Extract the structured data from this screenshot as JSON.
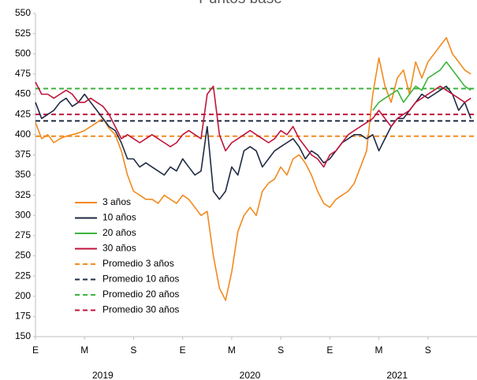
{
  "chart_data": {
    "type": "line",
    "title": "Puntos base",
    "categories": [
      "E",
      null,
      null,
      null,
      null,
      null,
      null,
      null,
      "M",
      null,
      null,
      null,
      null,
      null,
      null,
      null,
      "S",
      null,
      null,
      null,
      null,
      null,
      null,
      null,
      "E",
      null,
      null,
      null,
      null,
      null,
      null,
      null,
      "M",
      null,
      null,
      null,
      null,
      null,
      null,
      null,
      "S",
      null,
      null,
      null,
      null,
      null,
      null,
      null,
      "E",
      null,
      null,
      null,
      null,
      null,
      null,
      null,
      "M",
      null,
      null,
      null,
      null,
      null,
      null,
      null,
      "S",
      null,
      null,
      null,
      null,
      null,
      null,
      null
    ],
    "year_labels": [
      "2019",
      "2020",
      "2021"
    ],
    "series": [
      {
        "name": "3 años",
        "color": "#f28a1e",
        "values": [
          415,
          395,
          400,
          390,
          395,
          398,
          400,
          402,
          405,
          410,
          415,
          420,
          408,
          400,
          380,
          350,
          330,
          325,
          320,
          320,
          315,
          325,
          320,
          315,
          325,
          320,
          310,
          300,
          305,
          250,
          210,
          195,
          230,
          280,
          300,
          310,
          300,
          330,
          340,
          345,
          360,
          350,
          370,
          375,
          365,
          350,
          330,
          315,
          310,
          320,
          325,
          330,
          340,
          360,
          380,
          450,
          495,
          460,
          440,
          470,
          480,
          450,
          490,
          470,
          490,
          500,
          510,
          520,
          500,
          490,
          480,
          475
        ]
      },
      {
        "name": "10 años",
        "color": "#1f2a44",
        "values": [
          440,
          420,
          425,
          430,
          440,
          445,
          435,
          440,
          450,
          440,
          430,
          420,
          410,
          405,
          390,
          370,
          370,
          360,
          365,
          360,
          355,
          350,
          360,
          355,
          370,
          360,
          350,
          355,
          410,
          330,
          320,
          330,
          360,
          350,
          380,
          385,
          380,
          360,
          370,
          380,
          385,
          390,
          395,
          385,
          370,
          380,
          375,
          365,
          370,
          380,
          390,
          395,
          400,
          400,
          395,
          400,
          380,
          395,
          410,
          420,
          420,
          430,
          440,
          450,
          445,
          450,
          455,
          460,
          450,
          430,
          440,
          420
        ]
      },
      {
        "name": "20 años",
        "color": "#3cb43c",
        "values": [
          null,
          null,
          null,
          null,
          null,
          null,
          null,
          null,
          null,
          null,
          null,
          null,
          null,
          null,
          null,
          null,
          null,
          null,
          null,
          null,
          null,
          null,
          null,
          null,
          null,
          null,
          null,
          null,
          null,
          null,
          null,
          null,
          null,
          null,
          null,
          null,
          null,
          null,
          null,
          null,
          null,
          null,
          null,
          null,
          null,
          null,
          null,
          null,
          null,
          null,
          null,
          null,
          null,
          null,
          null,
          430,
          440,
          445,
          450,
          455,
          440,
          450,
          460,
          455,
          470,
          475,
          480,
          490,
          480,
          470,
          460,
          455
        ]
      },
      {
        "name": "30 años",
        "color": "#c0143c",
        "values": [
          465,
          450,
          450,
          445,
          450,
          455,
          450,
          440,
          440,
          445,
          440,
          435,
          425,
          410,
          395,
          400,
          395,
          390,
          395,
          400,
          395,
          390,
          385,
          390,
          400,
          405,
          400,
          395,
          450,
          460,
          400,
          380,
          390,
          395,
          400,
          405,
          400,
          395,
          390,
          395,
          405,
          400,
          410,
          395,
          385,
          375,
          370,
          360,
          375,
          380,
          390,
          400,
          405,
          410,
          415,
          420,
          430,
          420,
          410,
          420,
          425,
          430,
          440,
          445,
          450,
          455,
          460,
          455,
          450,
          445,
          440,
          445
        ]
      }
    ],
    "averages": [
      {
        "name": "Promedio 3 años",
        "color": "#f28a1e",
        "value": 398
      },
      {
        "name": "Promedio 10 años",
        "color": "#1f2a44",
        "value": 417
      },
      {
        "name": "Promedio 20 años",
        "color": "#3cb43c",
        "value": 457
      },
      {
        "name": "Promedio 30 años",
        "color": "#c0143c",
        "value": 425
      }
    ],
    "ylim": [
      150,
      550
    ],
    "yticks": [
      150,
      175,
      200,
      225,
      250,
      275,
      300,
      325,
      350,
      375,
      400,
      425,
      450,
      475,
      500,
      525,
      550
    ],
    "legend": "lower-left",
    "grid": false
  }
}
